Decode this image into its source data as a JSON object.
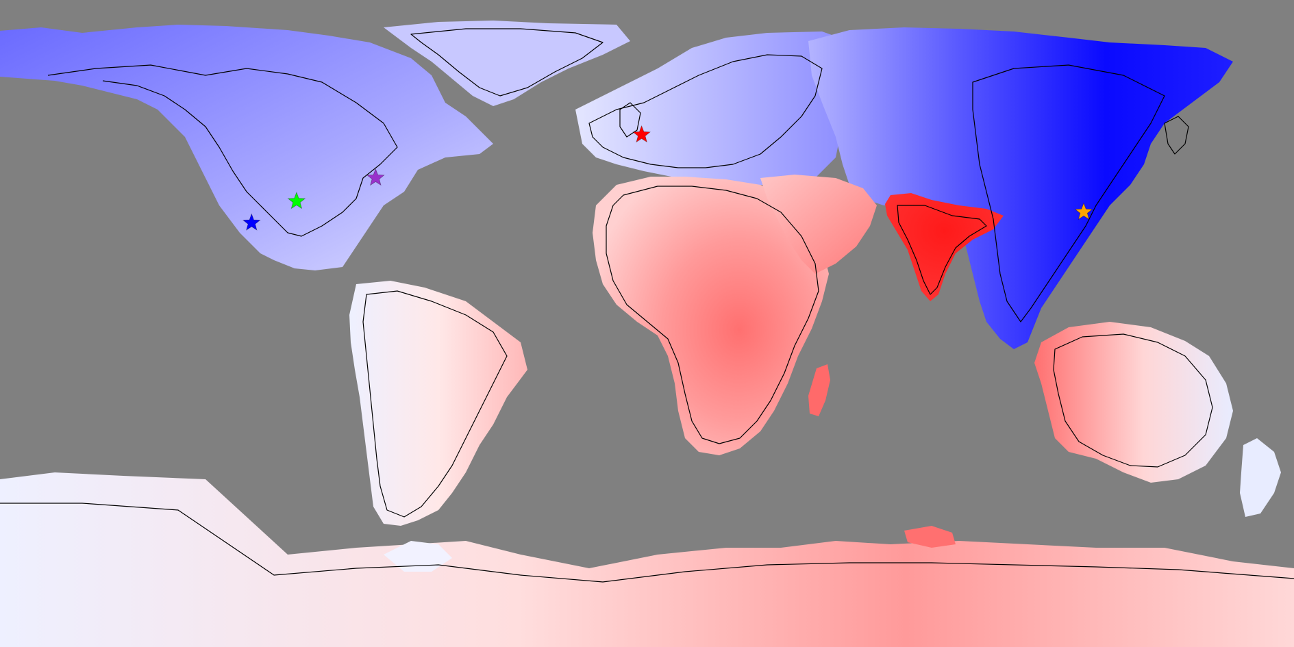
{
  "map": {
    "projection": "equirectangular",
    "background_color": "#808080",
    "coastline_color": "#000000",
    "color_scale": {
      "type": "diverging",
      "negative_color": "#0000ff",
      "neutral_color": "#ffffff",
      "positive_color": "#ff0000"
    },
    "regions": [
      {
        "name": "north-america",
        "value": -0.45
      },
      {
        "name": "greenland",
        "value": -0.2
      },
      {
        "name": "south-america",
        "value": 0.1
      },
      {
        "name": "europe",
        "value": -0.35
      },
      {
        "name": "africa",
        "value": 0.4
      },
      {
        "name": "arabia",
        "value": 0.45
      },
      {
        "name": "indian-subcontinent",
        "value": 1.0
      },
      {
        "name": "siberia-east-asia",
        "value": -1.0
      },
      {
        "name": "southeast-asia",
        "value": -0.9
      },
      {
        "name": "australia",
        "value": 0.35
      },
      {
        "name": "antarctica",
        "value": 0.3
      }
    ],
    "markers": [
      {
        "name": "marker-uk",
        "color": "#ff0000",
        "lon": -1.5,
        "lat": 52.5
      },
      {
        "name": "marker-us-northeast",
        "color": "#9932cc",
        "lon": -75.5,
        "lat": 40.5
      },
      {
        "name": "marker-us-central",
        "color": "#00ff00",
        "lon": -97.5,
        "lat": 34.0
      },
      {
        "name": "marker-us-southwest",
        "color": "#0000ff",
        "lon": -110.0,
        "lat": 28.0
      },
      {
        "name": "marker-east-china",
        "color": "#ffa500",
        "lon": 121.5,
        "lat": 31.0
      }
    ]
  }
}
